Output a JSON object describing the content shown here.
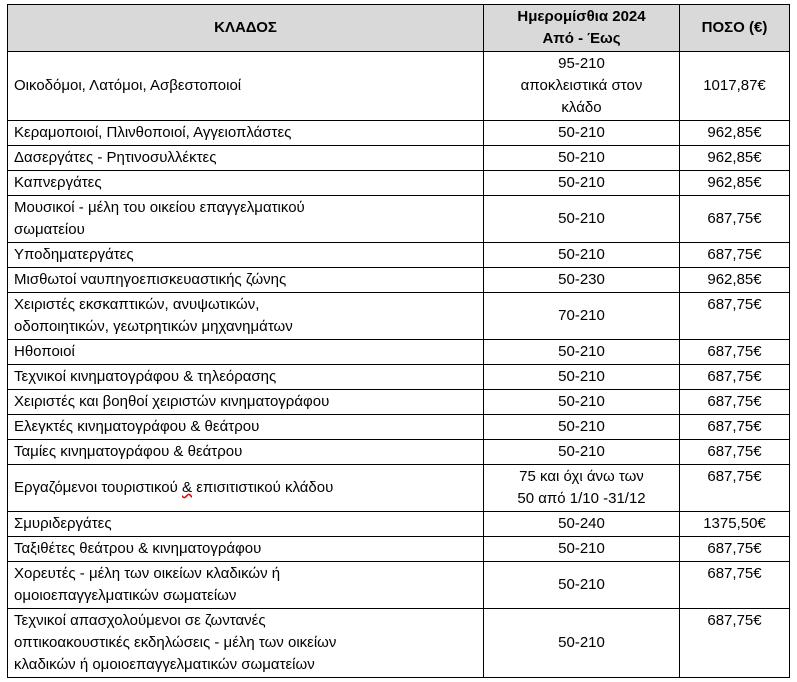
{
  "colors": {
    "header_bg": "#d9d9d9",
    "border": "#000000",
    "text": "#000000",
    "spell_underline": "#dd0000"
  },
  "table": {
    "headers": {
      "sector": "ΚΛΑΔΟΣ",
      "wages": "Ημερομίσθια 2024\nΑπό - Έως",
      "amount": "ΠΟΣΟ (€)"
    },
    "rows": [
      {
        "sector": "Οικοδόμοι, Λατόμοι, Ασβεστοποιοί",
        "wages": "95-210\nαποκλειστικά στον\nκλάδο",
        "amount": "1017,87€"
      },
      {
        "sector": "Κεραμοποιοί, Πλινθοποιοί, Αγγειοπλάστες",
        "wages": "50-210",
        "amount": "962,85€"
      },
      {
        "sector": "Δασεργάτες - Ρητινοσυλλέκτες",
        "wages": "50-210",
        "amount": "962,85€"
      },
      {
        "sector": "Καπνεργάτες",
        "wages": "50-210",
        "amount": "962,85€"
      },
      {
        "sector": "Μουσικοί - μέλη του οικείου επαγγελματικού\nσωματείου",
        "wages": "50-210",
        "amount": "687,75€"
      },
      {
        "sector": "Υποδηματεργάτες",
        "wages": "50-210",
        "amount": "687,75€"
      },
      {
        "sector": "Μισθωτοί ναυπηγοεπισκευαστικής ζώνης",
        "wages": "50-230",
        "amount": "962,85€"
      },
      {
        "sector": "Χειριστές εκσκαπτικών, ανυψωτικών,\nοδοποιητικών, γεωτρητικών μηχανημάτων",
        "wages": "70-210",
        "amount": "687,75€",
        "amount_valign": "top"
      },
      {
        "sector": "Ηθοποιοί",
        "wages": "50-210",
        "amount": "687,75€"
      },
      {
        "sector": "Τεχνικοί κινηματογράφου & τηλεόρασης",
        "wages": "50-210",
        "amount": "687,75€"
      },
      {
        "sector": "Χειριστές και βοηθοί χειριστών κινηματογράφου",
        "wages": "50-210",
        "amount": "687,75€"
      },
      {
        "sector": "Ελεγκτές κινηματογράφου & θεάτρου",
        "wages": "50-210",
        "amount": "687,75€"
      },
      {
        "sector": "Ταμίες κινηματογράφου & θεάτρου",
        "wages": "50-210",
        "amount": "687,75€"
      },
      {
        "sector": "Εργαζόμενοι τουριστικού & επισιτιστικού κλάδου",
        "wages": "75 και όχι άνω των\n50 από 1/10 -31/12",
        "amount": "687,75€",
        "amount_valign": "top",
        "spellcheck_mark": "&"
      },
      {
        "sector": "Σμυριδεργάτες",
        "wages": "50-240",
        "amount": "1375,50€"
      },
      {
        "sector": "Ταξιθέτες θεάτρου & κινηματογράφου",
        "wages": "50-210",
        "amount": "687,75€"
      },
      {
        "sector": "Χορευτές - μέλη των οικείων κλαδικών ή\nομοιοεπαγγελματικών σωματείων",
        "wages": "50-210",
        "amount": "687,75€",
        "amount_valign": "top"
      },
      {
        "sector": "Τεχνικοί απασχολούμενοι σε ζωντανές\nοπτικοακουστικές εκδηλώσεις - μέλη των οικείων\nκλαδικών ή ομοιοεπαγγελματικών σωματείων",
        "wages": "50-210",
        "amount": "687,75€",
        "amount_valign": "top"
      }
    ]
  }
}
